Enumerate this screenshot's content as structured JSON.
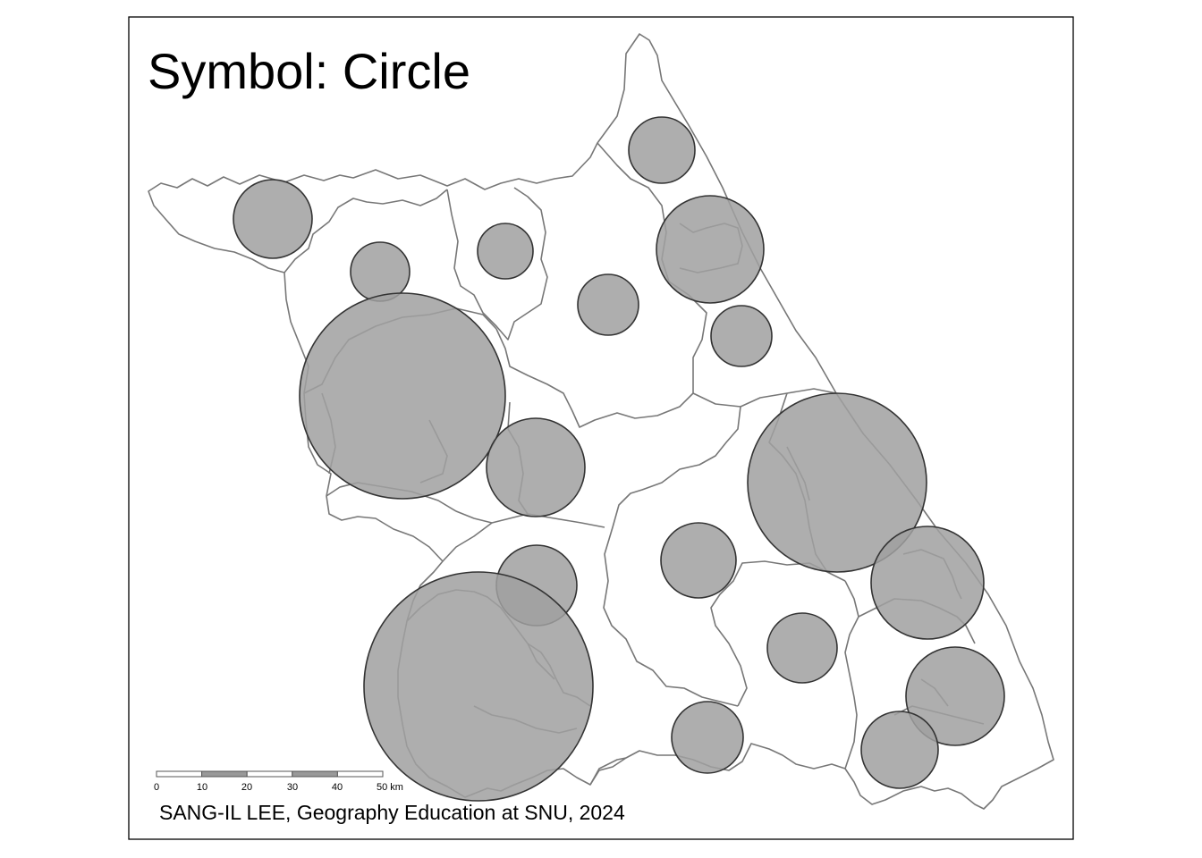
{
  "map": {
    "title": "Symbol: Circle",
    "credit": "SANG-IL LEE, Geography Education at SNU, 2024",
    "symbol_fill": "#a0a0a0",
    "symbol_stroke": "#333333",
    "boundary_color": "#777777",
    "frame_color": "#000000",
    "symbols": [
      {
        "id": "s1",
        "size": 44
      },
      {
        "id": "s2",
        "size": 33
      },
      {
        "id": "s3",
        "size": 31
      },
      {
        "id": "s4",
        "size": 37
      },
      {
        "id": "s5",
        "size": 34
      },
      {
        "id": "s6",
        "size": 60
      },
      {
        "id": "s7",
        "size": 34
      },
      {
        "id": "s8",
        "size": 115
      },
      {
        "id": "s9",
        "size": 55
      },
      {
        "id": "s10",
        "size": 100
      },
      {
        "id": "s11",
        "size": 45
      },
      {
        "id": "s12",
        "size": 42
      },
      {
        "id": "s13",
        "size": 128
      },
      {
        "id": "s14",
        "size": 63
      },
      {
        "id": "s15",
        "size": 39
      },
      {
        "id": "s16",
        "size": 55
      },
      {
        "id": "s17",
        "size": 40
      },
      {
        "id": "s18",
        "size": 43
      }
    ]
  },
  "scale_bar": {
    "ticks": [
      "0",
      "10",
      "20",
      "30",
      "40",
      "50 km"
    ]
  }
}
